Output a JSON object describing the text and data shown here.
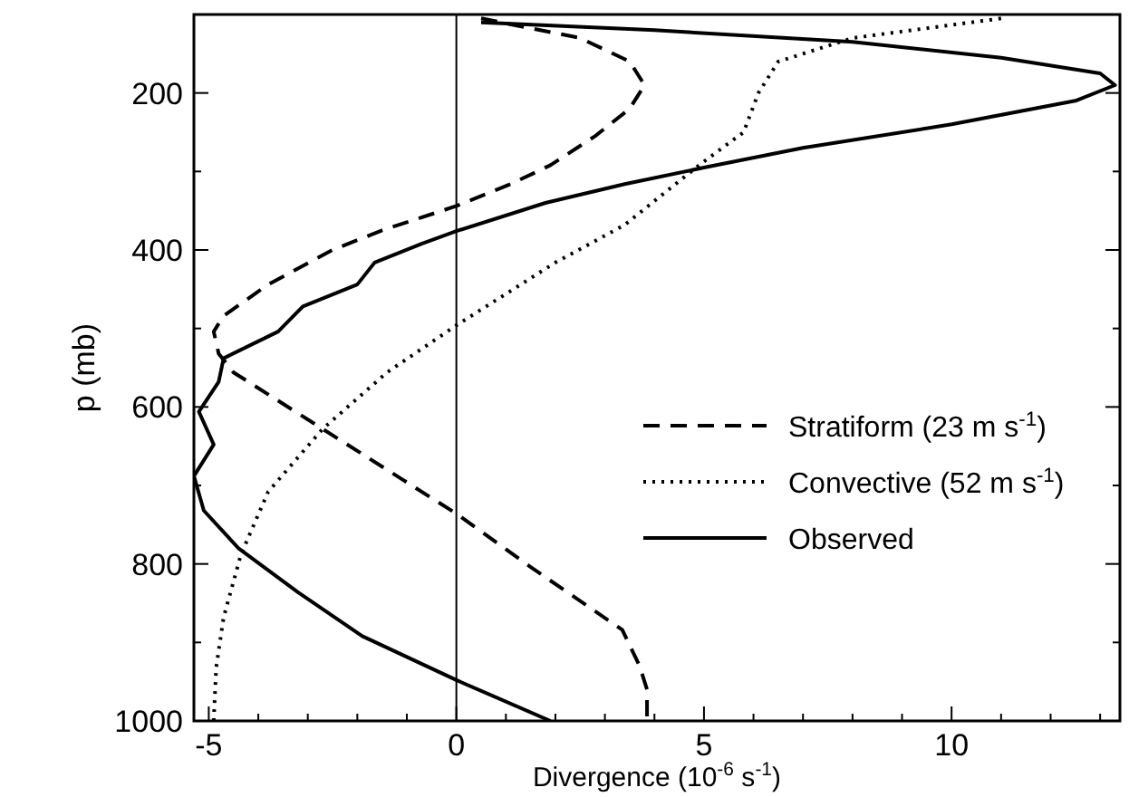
{
  "chart_data": {
    "type": "line",
    "xlabel": "Divergence (10$^{-6}$ s$^{-1}$)",
    "ylabel": "p (mb)",
    "xlim": [
      -5.3,
      13.4
    ],
    "ylim": [
      1000,
      100
    ],
    "xticks": [
      {
        "value": -5,
        "label": "-5"
      },
      {
        "value": -4,
        "label": null
      },
      {
        "value": -3,
        "label": null
      },
      {
        "value": -2,
        "label": null
      },
      {
        "value": -1,
        "label": null
      },
      0,
      {
        "value": 1,
        "label": null
      },
      {
        "value": 2,
        "label": null
      },
      {
        "value": 3,
        "label": null
      },
      {
        "value": 4,
        "label": null
      },
      5,
      {
        "value": 6,
        "label": null
      },
      {
        "value": 7,
        "label": null
      },
      {
        "value": 8,
        "label": null
      },
      {
        "value": 9,
        "label": null
      },
      10,
      {
        "value": 11,
        "label": null
      },
      {
        "value": 12,
        "label": null
      },
      {
        "value": 13,
        "label": null
      }
    ],
    "yticks": [
      {
        "value": 100,
        "label": null
      },
      200,
      {
        "value": 300,
        "label": null
      },
      400,
      {
        "value": 500,
        "label": null
      },
      600,
      {
        "value": 700,
        "label": null
      },
      800,
      {
        "value": 900,
        "label": null
      },
      1000
    ],
    "legend": "right",
    "grid": false,
    "ref_lines": [
      {
        "axis": "x",
        "value": 0,
        "color": "#000000",
        "line_style": "solid"
      }
    ],
    "series": [
      {
        "name": "Stratiform (23 m s$^{-1}$)",
        "color": "#000000",
        "line_style": "dashed",
        "x": [
          0.5,
          2.5,
          3.5,
          3.8,
          3.5,
          2.8,
          1.9,
          1.1,
          0,
          -1.5,
          -2.5,
          -3.8,
          -4.7,
          -4.9,
          -4.8,
          -4.5,
          -2.7,
          -1.1,
          0,
          1.5,
          3.35,
          3.7,
          3.85,
          3.85
        ],
        "values": [
          105,
          130,
          160,
          190,
          220,
          255,
          292,
          316,
          344,
          375,
          400,
          444,
          484,
          504,
          532,
          556,
          628,
          692,
          736,
          804,
          884,
          930,
          960,
          1000
        ]
      },
      {
        "name": "Convective (52 m s$^{-1}$)",
        "color": "#000000",
        "line_style": "dotted",
        "x": [
          11,
          8,
          6.5,
          6.1,
          5.8,
          4.9,
          3.4,
          2.0,
          0,
          -1.4,
          -2.7,
          -3.8,
          -4.35,
          -4.7,
          -4.85,
          -4.9
        ],
        "values": [
          105,
          130,
          160,
          200,
          250,
          292,
          368,
          416,
          496,
          556,
          628,
          708,
          788,
          868,
          932,
          1000
        ]
      },
      {
        "name": "Observed",
        "color": "#000000",
        "line_style": "solid",
        "x": [
          0.5,
          4,
          8,
          11,
          13,
          13.3,
          12.5,
          10,
          7,
          5,
          3.4,
          1.8,
          0,
          -0.7,
          -1.65,
          -2,
          -3.1,
          -3.6,
          -4.7,
          -4.8,
          -5.2,
          -4.9,
          -5.3,
          -5.1,
          -4.4,
          -3.2,
          -1.9,
          0,
          1.9
        ],
        "values": [
          110,
          120,
          135,
          155,
          175,
          190,
          210,
          240,
          270,
          295,
          316,
          340,
          376,
          392,
          416,
          444,
          472,
          504,
          538,
          568,
          606,
          648,
          688,
          732,
          780,
          836,
          892,
          948,
          1000
        ]
      }
    ]
  }
}
